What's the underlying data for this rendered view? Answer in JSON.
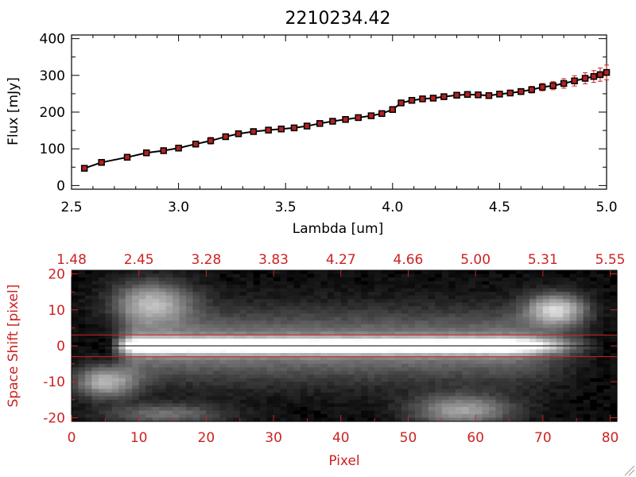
{
  "colors": {
    "accent": "#cc2222",
    "line": "#000000",
    "marker": "#b22222",
    "errorbar": "#cc2222"
  },
  "chart_data": [
    {
      "type": "line",
      "title": "2210234.42",
      "xlabel": "Lambda [um]",
      "ylabel": "Flux [mJy]",
      "xlim": [
        2.5,
        5.0
      ],
      "ylim": [
        -10,
        410
      ],
      "xticks": [
        "2.5",
        "3.0",
        "3.5",
        "4.0",
        "4.5",
        "5.0"
      ],
      "xtick_values": [
        2.5,
        3.0,
        3.5,
        4.0,
        4.5,
        5.0
      ],
      "yticks": [
        "0",
        "100",
        "200",
        "300",
        "400"
      ],
      "ytick_values": [
        0,
        100,
        200,
        300,
        400
      ],
      "grid": false,
      "series": [
        {
          "x": [
            2.56,
            2.64,
            2.76,
            2.85,
            2.93,
            3.0,
            3.08,
            3.15,
            3.22,
            3.28,
            3.35,
            3.42,
            3.48,
            3.54,
            3.6,
            3.66,
            3.72,
            3.78,
            3.84,
            3.9,
            3.95,
            4.0,
            4.04,
            4.09,
            4.14,
            4.19,
            4.24,
            4.3,
            4.35,
            4.4,
            4.45,
            4.5,
            4.55,
            4.6,
            4.65,
            4.7,
            4.75,
            4.8,
            4.85,
            4.9,
            4.94,
            4.97,
            5.0
          ],
          "y": [
            47,
            63,
            77,
            89,
            95,
            102,
            113,
            122,
            133,
            141,
            147,
            151,
            154,
            157,
            162,
            169,
            175,
            180,
            185,
            190,
            196,
            207,
            225,
            232,
            236,
            238,
            242,
            246,
            248,
            247,
            245,
            249,
            252,
            256,
            261,
            268,
            272,
            278,
            285,
            292,
            297,
            302,
            308
          ],
          "yerr": [
            4,
            7,
            8,
            6,
            5,
            6,
            8,
            9,
            6,
            5,
            5,
            4,
            4,
            4,
            5,
            4,
            4,
            4,
            4,
            5,
            5,
            6,
            5,
            5,
            4,
            4,
            4,
            5,
            4,
            4,
            4,
            5,
            6,
            8,
            9,
            10,
            11,
            13,
            14,
            15,
            16,
            18,
            20
          ]
        }
      ]
    },
    {
      "type": "heatmap",
      "xlabel": "Pixel",
      "ylabel": "Space Shift [pixel]",
      "xlim": [
        0,
        81
      ],
      "ylim": [
        -21,
        21
      ],
      "xticks": [
        "0",
        "10",
        "20",
        "30",
        "40",
        "50",
        "60",
        "70",
        "80"
      ],
      "xtick_values": [
        0,
        10,
        20,
        30,
        40,
        50,
        60,
        70,
        80
      ],
      "yticks": [
        "-20",
        "-10",
        "0",
        "10",
        "20"
      ],
      "ytick_values": [
        -20,
        -10,
        0,
        10,
        20
      ],
      "top_axis_ticks": [
        "1.48",
        "2.45",
        "3.28",
        "3.83",
        "4.27",
        "4.66",
        "5.00",
        "5.31",
        "5.55"
      ],
      "extraction_window": [
        -3,
        3
      ],
      "trace_center": 0,
      "columns": 81,
      "rows": 42,
      "colormap": "grayscale",
      "blobs": [
        {
          "x": 12,
          "y": 12,
          "amplitude": 0.6,
          "sx": 4,
          "sy": 4
        },
        {
          "x": 5,
          "y": -10,
          "amplitude": 0.65,
          "sx": 3,
          "sy": 3
        },
        {
          "x": 72,
          "y": 10,
          "amplitude": 0.75,
          "sx": 3,
          "sy": 3
        },
        {
          "x": 58,
          "y": -18,
          "amplitude": 0.55,
          "sx": 5,
          "sy": 3
        },
        {
          "x": 14,
          "y": -19,
          "amplitude": 0.35,
          "sx": 6,
          "sy": 2
        }
      ]
    }
  ]
}
